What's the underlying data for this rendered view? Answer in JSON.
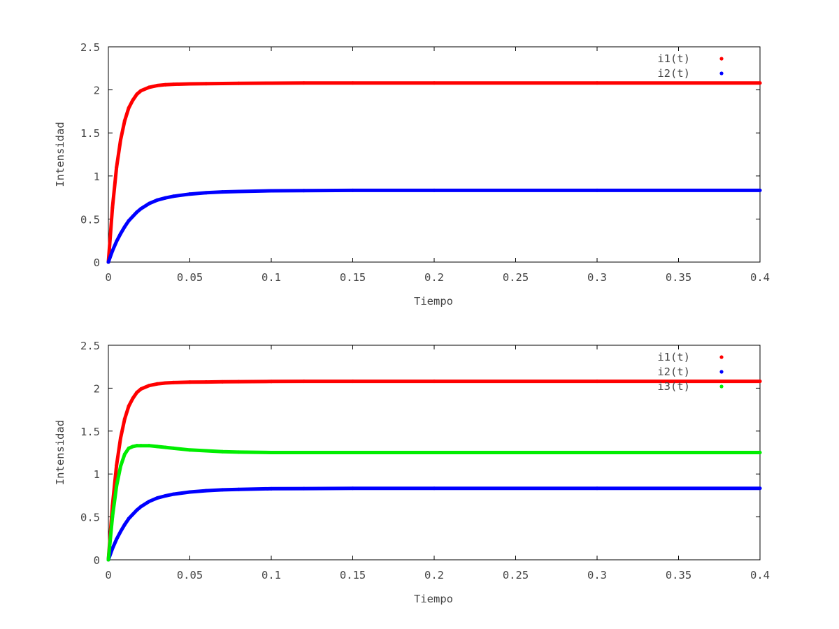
{
  "chart_data": [
    {
      "type": "line",
      "title": "",
      "xlabel": "Tiempo",
      "ylabel": "Intensidad",
      "xlim": [
        0,
        0.4
      ],
      "ylim": [
        0,
        2.5
      ],
      "xticks": [
        0,
        0.05,
        0.1,
        0.15,
        0.2,
        0.25,
        0.3,
        0.35,
        0.4
      ],
      "xtick_labels": [
        "0",
        "0.05",
        "0.1",
        "0.15",
        "0.2",
        "0.25",
        "0.3",
        "0.35",
        "0.4"
      ],
      "yticks": [
        0,
        0.5,
        1,
        1.5,
        2,
        2.5
      ],
      "ytick_labels": [
        "0",
        "0.5",
        "1",
        "1.5",
        "2",
        "2.5"
      ],
      "grid": false,
      "legend_position": "top-right",
      "series": [
        {
          "name": "i1(t)",
          "color": "#ff0000",
          "x": [
            0,
            0.0025,
            0.005,
            0.0075,
            0.01,
            0.0125,
            0.015,
            0.0175,
            0.02,
            0.025,
            0.03,
            0.035,
            0.04,
            0.05,
            0.06,
            0.07,
            0.08,
            0.1,
            0.12,
            0.15,
            0.2,
            0.3,
            0.4
          ],
          "y": [
            0,
            0.63,
            1.1,
            1.42,
            1.64,
            1.79,
            1.88,
            1.95,
            1.99,
            2.03,
            2.05,
            2.06,
            2.065,
            2.07,
            2.072,
            2.074,
            2.076,
            2.078,
            2.08,
            2.08,
            2.08,
            2.08,
            2.08
          ]
        },
        {
          "name": "i2(t)",
          "color": "#0000ff",
          "x": [
            0,
            0.0025,
            0.005,
            0.0075,
            0.01,
            0.0125,
            0.015,
            0.0175,
            0.02,
            0.025,
            0.03,
            0.035,
            0.04,
            0.05,
            0.06,
            0.07,
            0.08,
            0.1,
            0.12,
            0.15,
            0.2,
            0.3,
            0.4
          ],
          "y": [
            0,
            0.13,
            0.24,
            0.33,
            0.41,
            0.48,
            0.53,
            0.58,
            0.62,
            0.68,
            0.72,
            0.745,
            0.765,
            0.79,
            0.805,
            0.815,
            0.82,
            0.828,
            0.83,
            0.833,
            0.833,
            0.833,
            0.833
          ]
        }
      ]
    },
    {
      "type": "line",
      "title": "",
      "xlabel": "Tiempo",
      "ylabel": "Intensidad",
      "xlim": [
        0,
        0.4
      ],
      "ylim": [
        0,
        2.5
      ],
      "xticks": [
        0,
        0.05,
        0.1,
        0.15,
        0.2,
        0.25,
        0.3,
        0.35,
        0.4
      ],
      "xtick_labels": [
        "0",
        "0.05",
        "0.1",
        "0.15",
        "0.2",
        "0.25",
        "0.3",
        "0.35",
        "0.4"
      ],
      "yticks": [
        0,
        0.5,
        1,
        1.5,
        2,
        2.5
      ],
      "ytick_labels": [
        "0",
        "0.5",
        "1",
        "1.5",
        "2",
        "2.5"
      ],
      "grid": false,
      "legend_position": "top-right",
      "series": [
        {
          "name": "i1(t)",
          "color": "#ff0000",
          "x": [
            0,
            0.0025,
            0.005,
            0.0075,
            0.01,
            0.0125,
            0.015,
            0.0175,
            0.02,
            0.025,
            0.03,
            0.035,
            0.04,
            0.05,
            0.06,
            0.07,
            0.08,
            0.1,
            0.12,
            0.15,
            0.2,
            0.3,
            0.4
          ],
          "y": [
            0,
            0.63,
            1.1,
            1.42,
            1.64,
            1.79,
            1.88,
            1.95,
            1.99,
            2.03,
            2.05,
            2.06,
            2.065,
            2.07,
            2.072,
            2.074,
            2.076,
            2.078,
            2.08,
            2.08,
            2.08,
            2.08,
            2.08
          ]
        },
        {
          "name": "i2(t)",
          "color": "#0000ff",
          "x": [
            0,
            0.0025,
            0.005,
            0.0075,
            0.01,
            0.0125,
            0.015,
            0.0175,
            0.02,
            0.025,
            0.03,
            0.035,
            0.04,
            0.05,
            0.06,
            0.07,
            0.08,
            0.1,
            0.12,
            0.15,
            0.2,
            0.3,
            0.4
          ],
          "y": [
            0,
            0.13,
            0.24,
            0.33,
            0.41,
            0.48,
            0.53,
            0.58,
            0.62,
            0.68,
            0.72,
            0.745,
            0.765,
            0.79,
            0.805,
            0.815,
            0.82,
            0.828,
            0.83,
            0.833,
            0.833,
            0.833,
            0.833
          ]
        },
        {
          "name": "i3(t)",
          "color": "#00ee00",
          "x": [
            0,
            0.0025,
            0.005,
            0.0075,
            0.01,
            0.0125,
            0.015,
            0.0175,
            0.02,
            0.025,
            0.03,
            0.035,
            0.04,
            0.05,
            0.06,
            0.07,
            0.08,
            0.1,
            0.12,
            0.15,
            0.2,
            0.3,
            0.4
          ],
          "y": [
            0,
            0.5,
            0.86,
            1.09,
            1.23,
            1.3,
            1.32,
            1.33,
            1.33,
            1.33,
            1.32,
            1.31,
            1.3,
            1.28,
            1.27,
            1.26,
            1.255,
            1.25,
            1.25,
            1.25,
            1.25,
            1.25,
            1.25
          ]
        }
      ]
    }
  ]
}
